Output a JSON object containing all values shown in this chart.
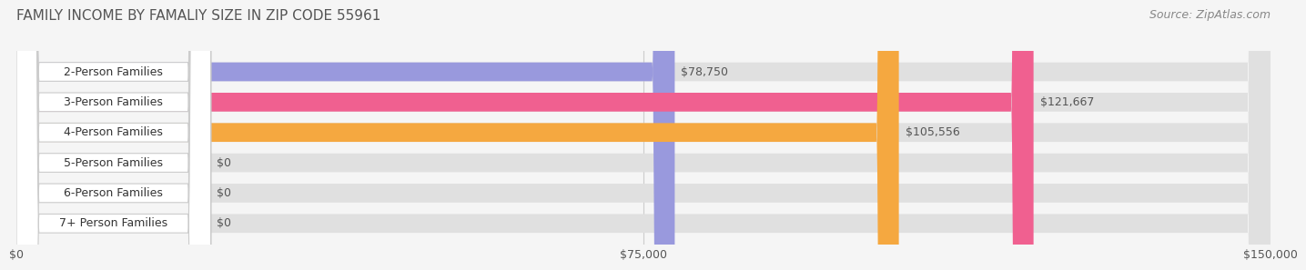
{
  "title": "FAMILY INCOME BY FAMALIY SIZE IN ZIP CODE 55961",
  "source": "Source: ZipAtlas.com",
  "categories": [
    "2-Person Families",
    "3-Person Families",
    "4-Person Families",
    "5-Person Families",
    "6-Person Families",
    "7+ Person Families"
  ],
  "values": [
    78750,
    121667,
    105556,
    0,
    0,
    0
  ],
  "bar_colors": [
    "#9999dd",
    "#f06090",
    "#f5a840",
    "#f0a0a0",
    "#a0b8e8",
    "#c0a8d8"
  ],
  "value_labels": [
    "$78,750",
    "$121,667",
    "$105,556",
    "$0",
    "$0",
    "$0"
  ],
  "xlim": [
    0,
    150000
  ],
  "xticklabels": [
    "$0",
    "$75,000",
    "$150,000"
  ],
  "background_color": "#f5f5f5",
  "title_color": "#555555",
  "source_color": "#888888",
  "title_fontsize": 11,
  "source_fontsize": 9,
  "tick_fontsize": 9,
  "label_fontsize": 9,
  "value_fontsize": 9
}
